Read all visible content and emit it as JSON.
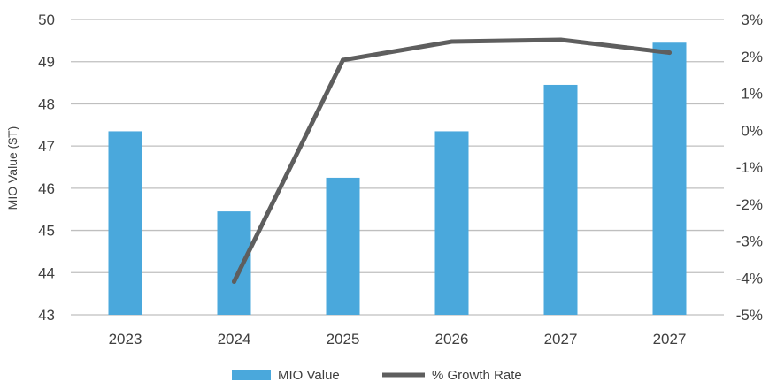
{
  "chart_data": {
    "type": "bar",
    "categories": [
      "2023",
      "2024",
      "2025",
      "2026",
      "2027",
      "2027"
    ],
    "series": [
      {
        "name": "MIO Value",
        "type": "bar",
        "axis": "left",
        "values": [
          47.35,
          45.45,
          46.25,
          47.35,
          48.45,
          49.45
        ]
      },
      {
        "name": "% Growth Rate",
        "type": "line",
        "axis": "right",
        "values": [
          null,
          -4.1,
          1.9,
          2.4,
          2.45,
          2.1
        ]
      }
    ],
    "ylabel": "MIO Value ($T)",
    "ylim": [
      43,
      50
    ],
    "yticks": [
      "43",
      "44",
      "45",
      "46",
      "47",
      "48",
      "49",
      "50"
    ],
    "y2lim": [
      -5,
      3
    ],
    "y2ticks": [
      "-5%",
      "-4%",
      "-3%",
      "-2%",
      "-1%",
      "0%",
      "1%",
      "2%",
      "3%"
    ],
    "grid": true,
    "legend": "bottom-center",
    "colors": {
      "bar": "#4aa8dc",
      "line": "#5e5e5e",
      "grid": "#bfbfbf",
      "text": "#404040"
    }
  }
}
